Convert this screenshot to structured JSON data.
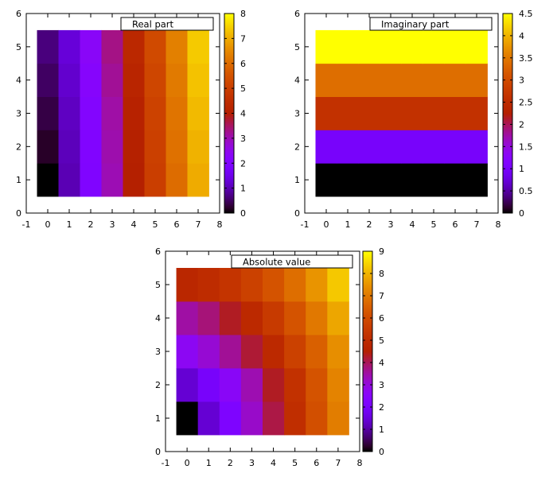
{
  "figure": {
    "palette": "gnuplot-pm3d-rgbformulae-7-5-15"
  },
  "chart_data": [
    {
      "type": "heatmap",
      "title": "Real part",
      "x": [
        0,
        1,
        2,
        3,
        4,
        5,
        6,
        7
      ],
      "y": [
        1,
        2,
        3,
        4,
        5
      ],
      "xlim": [
        -1,
        8
      ],
      "ylim": [
        0,
        6
      ],
      "xticks": [
        "-1",
        "0",
        "1",
        "2",
        "3",
        "4",
        "5",
        "6",
        "7",
        "8"
      ],
      "yticks": [
        "0",
        "1",
        "2",
        "3",
        "4",
        "5",
        "6"
      ],
      "cbrange": [
        0,
        8
      ],
      "cbticks": [
        "0",
        "1",
        "2",
        "3",
        "4",
        "5",
        "6",
        "7",
        "8"
      ],
      "z": [
        [
          0.0,
          1.0,
          2.0,
          3.0,
          4.0,
          5.0,
          6.0,
          7.0
        ],
        [
          0.2,
          1.05,
          2.05,
          3.05,
          4.05,
          5.05,
          6.1,
          7.1
        ],
        [
          0.35,
          1.1,
          2.1,
          3.1,
          4.1,
          5.1,
          6.15,
          7.2
        ],
        [
          0.5,
          1.2,
          2.2,
          3.2,
          4.2,
          5.2,
          6.25,
          7.3
        ],
        [
          0.65,
          1.3,
          2.3,
          3.3,
          4.3,
          5.3,
          6.35,
          7.4
        ]
      ]
    },
    {
      "type": "heatmap",
      "title": "Imaginary part",
      "x": [
        0,
        1,
        2,
        3,
        4,
        5,
        6,
        7
      ],
      "y": [
        1,
        2,
        3,
        4,
        5
      ],
      "xlim": [
        -1,
        8
      ],
      "ylim": [
        0,
        6
      ],
      "xticks": [
        "-1",
        "0",
        "1",
        "2",
        "3",
        "4",
        "5",
        "6",
        "7",
        "8"
      ],
      "yticks": [
        "0",
        "1",
        "2",
        "3",
        "4",
        "5",
        "6"
      ],
      "cbrange": [
        0,
        4.5
      ],
      "cbticks": [
        "0",
        "0.5",
        "1",
        "1.5",
        "2",
        "2.5",
        "3",
        "3.5",
        "4",
        "4.5"
      ],
      "z": [
        [
          0.0,
          0.0,
          0.0,
          0.0,
          0.0,
          0.0,
          0.0,
          0.0
        ],
        [
          1.0,
          1.0,
          1.0,
          1.0,
          1.0,
          1.0,
          1.0,
          1.0
        ],
        [
          2.6,
          2.6,
          2.6,
          2.6,
          2.6,
          2.6,
          2.6,
          2.6
        ],
        [
          3.4,
          3.4,
          3.4,
          3.4,
          3.4,
          3.4,
          3.4,
          3.4
        ],
        [
          4.5,
          4.5,
          4.5,
          4.5,
          4.5,
          4.5,
          4.5,
          4.5
        ]
      ]
    },
    {
      "type": "heatmap",
      "title": "Absolute value",
      "x": [
        0,
        1,
        2,
        3,
        4,
        5,
        6,
        7
      ],
      "y": [
        1,
        2,
        3,
        4,
        5
      ],
      "xlim": [
        -1,
        8
      ],
      "ylim": [
        0,
        6
      ],
      "xticks": [
        "-1",
        "0",
        "1",
        "2",
        "3",
        "4",
        "5",
        "6",
        "7",
        "8"
      ],
      "yticks": [
        "0",
        "1",
        "2",
        "3",
        "4",
        "5",
        "6"
      ],
      "cbrange": [
        0,
        9
      ],
      "cbticks": [
        "0",
        "1",
        "2",
        "3",
        "4",
        "5",
        "6",
        "7",
        "8",
        "9"
      ],
      "z": [
        [
          0.0,
          1.4,
          2.2,
          3.2,
          4.1,
          5.1,
          6.1,
          7.1
        ],
        [
          1.4,
          2.0,
          2.6,
          3.4,
          4.3,
          5.2,
          6.2,
          7.2
        ],
        [
          2.7,
          3.1,
          3.6,
          4.2,
          4.9,
          5.7,
          6.5,
          7.4
        ],
        [
          3.5,
          3.8,
          4.3,
          4.9,
          5.5,
          6.2,
          7.0,
          7.8
        ],
        [
          4.8,
          5.0,
          5.3,
          5.7,
          6.2,
          6.8,
          7.5,
          8.3
        ]
      ]
    }
  ]
}
